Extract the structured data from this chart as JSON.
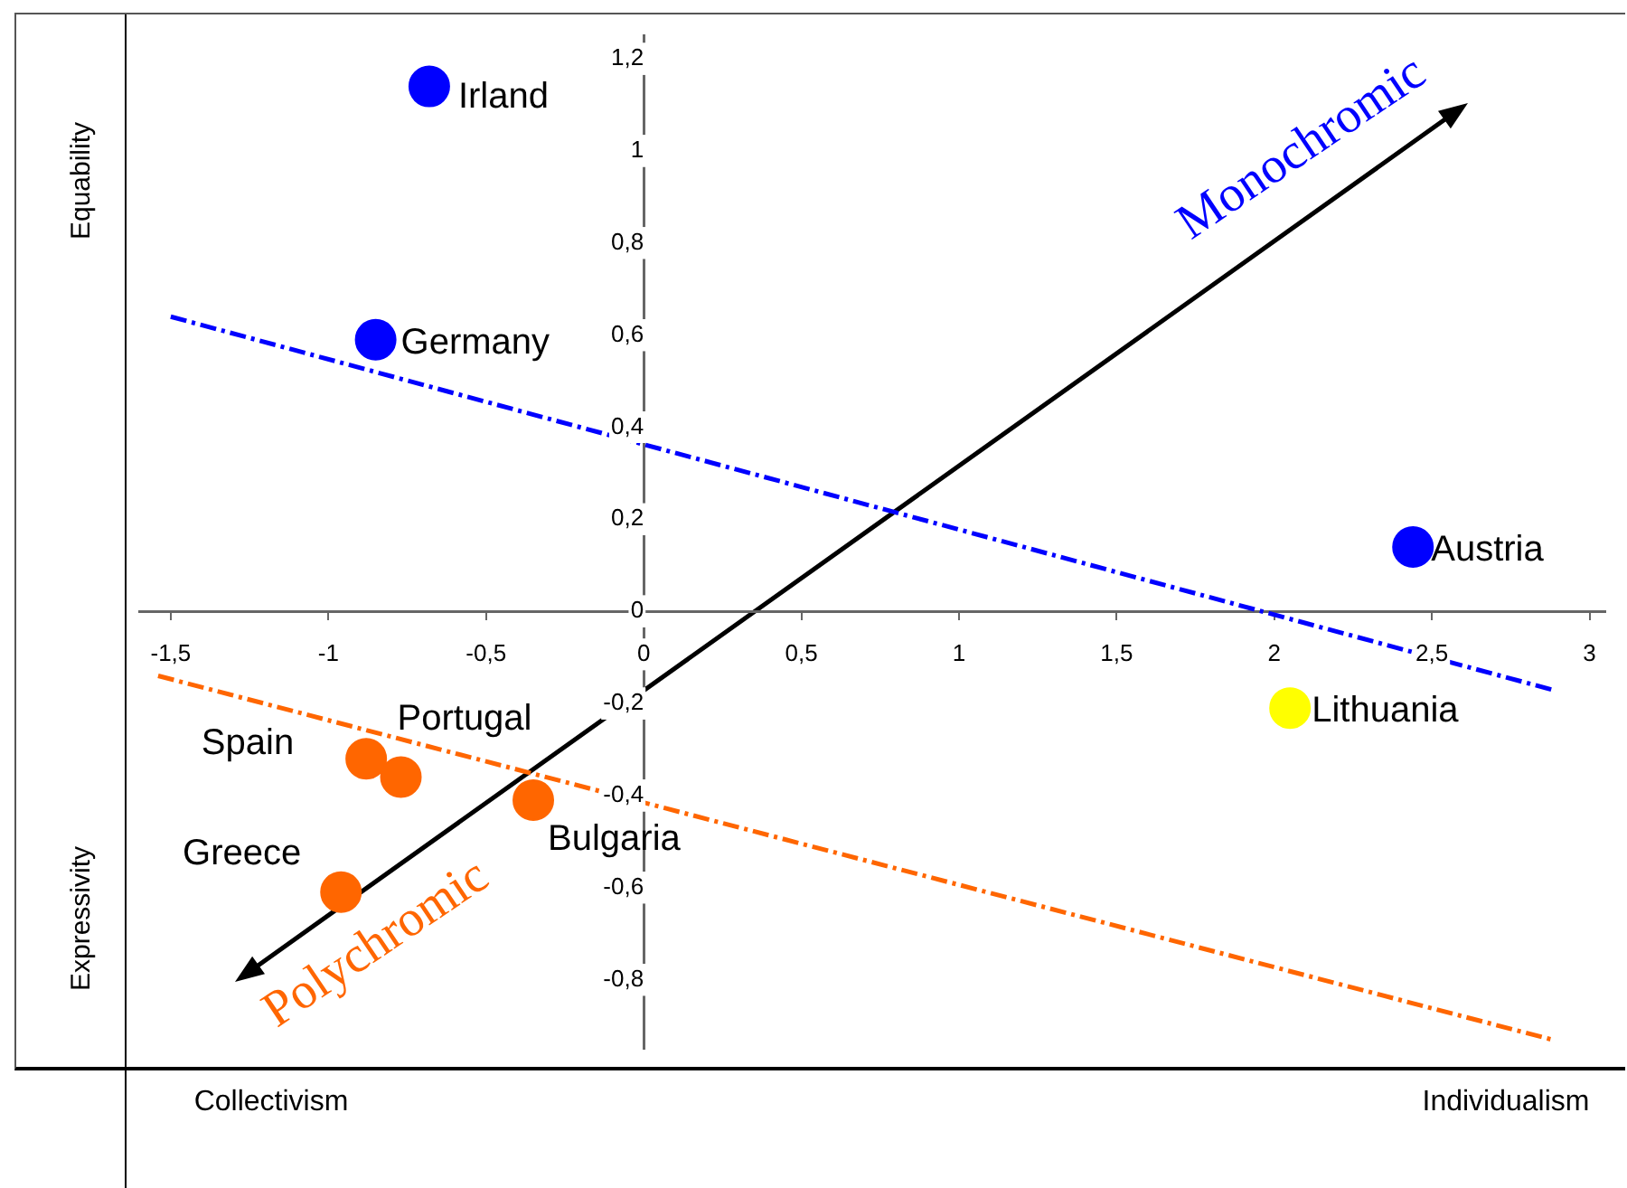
{
  "chart_data": {
    "type": "scatter",
    "xlim": [
      -1.6,
      3.05
    ],
    "ylim": [
      -0.95,
      1.25
    ],
    "xticks": [
      {
        "value": -1.5,
        "label": "-1,5"
      },
      -1,
      {
        "value": -0.5,
        "label": "-0,5"
      },
      0,
      {
        "value": 0.5,
        "label": "0,5"
      },
      1,
      {
        "value": 1.5,
        "label": "1,5"
      },
      2,
      {
        "value": 2.5,
        "label": "2,5"
      },
      3
    ],
    "yticks": [
      {
        "value": -0.8,
        "label": "-0,8"
      },
      {
        "value": -0.6,
        "label": "-0,6"
      },
      {
        "value": -0.4,
        "label": "-0,4"
      },
      {
        "value": -0.2,
        "label": "-0,2"
      },
      0,
      {
        "value": 0.2,
        "label": "0,2"
      },
      {
        "value": 0.4,
        "label": "0,4"
      },
      {
        "value": 0.6,
        "label": "0,6"
      },
      {
        "value": 0.8,
        "label": "0,8"
      },
      1,
      {
        "value": 1.2,
        "label": "1,2"
      }
    ],
    "marker": "circle",
    "legend": false,
    "series": [
      {
        "name": "Irland",
        "color": "#0000ff",
        "x": [
          -0.68
        ],
        "values": [
          1.14
        ]
      },
      {
        "name": "Germany",
        "color": "#0000ff",
        "x": [
          -0.85
        ],
        "values": [
          0.59
        ]
      },
      {
        "name": "Austria",
        "color": "#0000ff",
        "x": [
          2.44
        ],
        "values": [
          0.14
        ]
      },
      {
        "name": "Lithuania",
        "color": "#ffff00",
        "x": [
          2.05
        ],
        "values": [
          -0.21
        ]
      },
      {
        "name": "Spain",
        "color": "#ff6600",
        "x": [
          -0.88
        ],
        "values": [
          -0.32
        ]
      },
      {
        "name": "Portugal",
        "color": "#ff6600",
        "x": [
          -0.77
        ],
        "values": [
          -0.36
        ]
      },
      {
        "name": "Bulgaria",
        "color": "#ff6600",
        "x": [
          -0.35
        ],
        "values": [
          -0.41
        ]
      },
      {
        "name": "Greece",
        "color": "#ff6600",
        "x": [
          -0.96
        ],
        "values": [
          -0.61
        ]
      },
      {
        "type": "line",
        "color": "#0000ff",
        "x": [
          -1.5,
          2.88
        ],
        "values": [
          0.64,
          -0.17
        ],
        "line_style": "dashed",
        "marker": "none"
      },
      {
        "type": "line",
        "color": "#ff6600",
        "x": [
          -1.54,
          2.88
        ],
        "values": [
          -0.14,
          -0.93
        ],
        "line_style": "dashed",
        "marker": "none"
      }
    ],
    "annotations": [
      "Equability",
      "Expressivity",
      "Collectivism",
      "Individualism",
      "Monochromic",
      "Polychromic"
    ]
  }
}
